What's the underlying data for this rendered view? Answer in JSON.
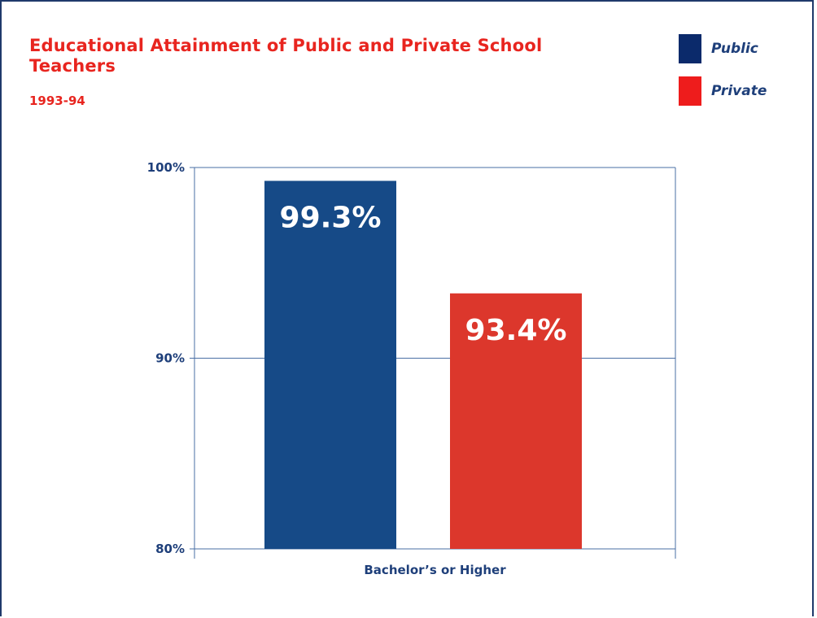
{
  "chart_data": {
    "type": "bar",
    "title": "Educational Attainment of Public and Private School Teachers",
    "subtitle": "1993-94",
    "categories": [
      "Bachelor’s or Higher"
    ],
    "series": [
      {
        "name": "Public",
        "values": [
          99.3
        ],
        "labels": [
          "99.3%"
        ],
        "color": "#164a87"
      },
      {
        "name": "Private",
        "values": [
          93.4
        ],
        "labels": [
          "93.4%"
        ],
        "color": "#dc372c"
      }
    ],
    "xlabel": "Bachelor’s or Higher",
    "ylabel": "",
    "ylim": [
      80,
      100
    ],
    "yticks": [
      80,
      90,
      100
    ],
    "ytick_labels": [
      "80%",
      "90%",
      "100%"
    ],
    "grid": true,
    "legend_position": "top-right"
  },
  "legend": {
    "items": [
      {
        "label": "Public",
        "color": "#0b2a6b"
      },
      {
        "label": "Private",
        "color": "#ee1c1c"
      }
    ]
  },
  "colors": {
    "title": "#e8251f",
    "axis": "#4a6fa5",
    "tick_text": "#1e3f7a"
  }
}
